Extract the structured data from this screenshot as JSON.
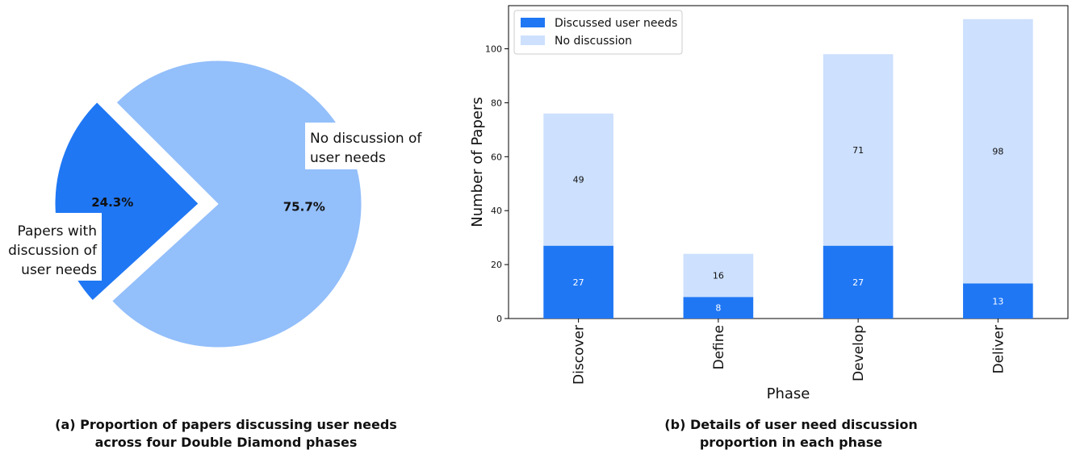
{
  "chart_data": [
    {
      "type": "pie",
      "labels": [
        "Papers with\ndiscussion of\nuser needs",
        "No discussion of\nuser needs"
      ],
      "values": [
        24.3,
        75.7
      ],
      "pct_labels": [
        "24.3%",
        "75.7%"
      ],
      "colors": [
        "#1f77f4",
        "#93bffb"
      ],
      "exploded": [
        true,
        false
      ],
      "caption": "(a) Proportion of papers discussing user needs\nacross four Double Diamond phases"
    },
    {
      "type": "bar",
      "stacked": true,
      "categories": [
        "Discover",
        "Define",
        "Develop",
        "Deliver"
      ],
      "series": [
        {
          "name": "Discussed user needs",
          "values": [
            27,
            8,
            27,
            13
          ],
          "color": "#1f77f4"
        },
        {
          "name": "No discussion",
          "values": [
            49,
            16,
            71,
            98
          ],
          "color": "#cde0fd"
        }
      ],
      "xlabel": "Phase",
      "ylabel": "Number of Papers",
      "yticks": [
        "0",
        "20",
        "40",
        "60",
        "80",
        "100"
      ],
      "ylim": [
        0,
        116
      ],
      "legend": "top-left",
      "caption": "(b) Details of user need discussion\nproportion in each phase"
    }
  ]
}
